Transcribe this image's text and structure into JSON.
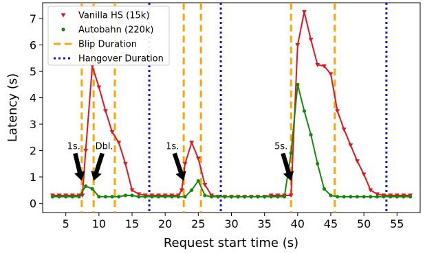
{
  "chart_data": {
    "type": "line",
    "xlabel": "Request start time (s)",
    "ylabel": "Latency (s)",
    "xlim": [
      1.5,
      58.5
    ],
    "ylim": [
      -0.35,
      7.6
    ],
    "xticks": [
      5,
      10,
      15,
      20,
      25,
      30,
      35,
      40,
      45,
      50,
      55
    ],
    "yticks": [
      0,
      1,
      2,
      3,
      4,
      5,
      6,
      7
    ],
    "grid": false,
    "legend_position": "top-left",
    "series": [
      {
        "name": "Vanilla HS (15k)",
        "color": "#e8121d",
        "marker": "triangle-down",
        "x": [
          3,
          4,
          5,
          6,
          7,
          7.5,
          8,
          9,
          10,
          11,
          12,
          13,
          14,
          15,
          16,
          17,
          18,
          19,
          20,
          21,
          22,
          22.5,
          23,
          24,
          25,
          26,
          27,
          28,
          29,
          30,
          31,
          32,
          33,
          34,
          35,
          36,
          37,
          38,
          39,
          40,
          41,
          42,
          43,
          44,
          45,
          46,
          47,
          48,
          49,
          50,
          51,
          52,
          53,
          54,
          55,
          56,
          57
        ],
        "y": [
          0.3,
          0.3,
          0.3,
          0.3,
          0.3,
          0.3,
          2.0,
          5.2,
          4.4,
          3.5,
          2.7,
          2.3,
          1.5,
          0.5,
          0.35,
          0.3,
          0.3,
          0.3,
          0.3,
          0.3,
          0.3,
          0.5,
          1.5,
          2.3,
          1.7,
          0.7,
          0.3,
          0.25,
          0.25,
          0.25,
          0.25,
          0.25,
          0.25,
          0.25,
          0.25,
          0.3,
          0.3,
          0.3,
          0.3,
          6.0,
          7.25,
          6.2,
          5.25,
          5.2,
          4.9,
          3.5,
          2.8,
          2.2,
          1.6,
          1.1,
          0.5,
          0.35,
          0.3,
          0.3,
          0.3,
          0.3,
          0.3
        ]
      },
      {
        "name": "Autobahn (220k)",
        "color": "#138a07",
        "marker": "circle",
        "x": [
          3,
          4,
          5,
          6,
          7,
          8,
          9,
          10,
          11,
          12,
          13,
          14,
          15,
          16,
          17,
          18,
          19,
          20,
          21,
          22,
          23,
          24,
          25,
          26,
          27,
          28,
          29,
          30,
          31,
          32,
          33,
          34,
          35,
          36,
          37,
          38,
          39,
          40,
          41,
          42,
          43,
          44,
          45,
          46,
          47,
          48,
          49,
          50,
          51,
          52,
          53,
          54,
          55,
          56,
          57
        ],
        "y": [
          0.25,
          0.25,
          0.25,
          0.25,
          0.25,
          0.65,
          0.55,
          0.25,
          0.25,
          0.25,
          0.25,
          0.3,
          0.3,
          0.25,
          0.25,
          0.25,
          0.25,
          0.25,
          0.25,
          0.25,
          0.25,
          0.5,
          0.85,
          0.3,
          0.25,
          0.25,
          0.25,
          0.25,
          0.25,
          0.25,
          0.25,
          0.25,
          0.25,
          0.25,
          0.25,
          0.25,
          1.9,
          4.5,
          3.5,
          2.6,
          1.5,
          0.55,
          0.3,
          0.25,
          0.25,
          0.25,
          0.25,
          0.25,
          0.25,
          0.25,
          0.25,
          0.25,
          0.25,
          0.25,
          0.25
        ]
      }
    ],
    "vlines": [
      {
        "series": "Blip Duration",
        "x": 7.4
      },
      {
        "series": "Blip Duration",
        "x": 9.2
      },
      {
        "series": "Blip Duration",
        "x": 12.4
      },
      {
        "series": "Blip Duration",
        "x": 22.8
      },
      {
        "series": "Blip Duration",
        "x": 25.4
      },
      {
        "series": "Blip Duration",
        "x": 39.0
      },
      {
        "series": "Blip Duration",
        "x": 45.6
      },
      {
        "series": "Hangover Duration",
        "x": 17.6
      },
      {
        "series": "Hangover Duration",
        "x": 28.4
      },
      {
        "series": "Hangover Duration",
        "x": 53.4
      }
    ],
    "line_styles": [
      {
        "name": "Blip Duration",
        "color": "#ffa500",
        "dash": "dashed"
      },
      {
        "name": "Hangover Duration",
        "color": "#1010e8",
        "dash": "dotted"
      }
    ],
    "annotations": [
      {
        "text": "1s.",
        "text_x": 6.2,
        "text_y": 2.05,
        "arrow_x": 7.4,
        "arrow_y": 0.85
      },
      {
        "text": "Dbl.",
        "text_x": 10.8,
        "text_y": 2.05,
        "arrow_x": 9.2,
        "arrow_y": 0.85
      },
      {
        "text": "1s.",
        "text_x": 21.1,
        "text_y": 2.05,
        "arrow_x": 22.8,
        "arrow_y": 0.85
      },
      {
        "text": "5s.",
        "text_x": 37.5,
        "text_y": 2.05,
        "arrow_x": 39.0,
        "arrow_y": 0.85
      }
    ]
  }
}
